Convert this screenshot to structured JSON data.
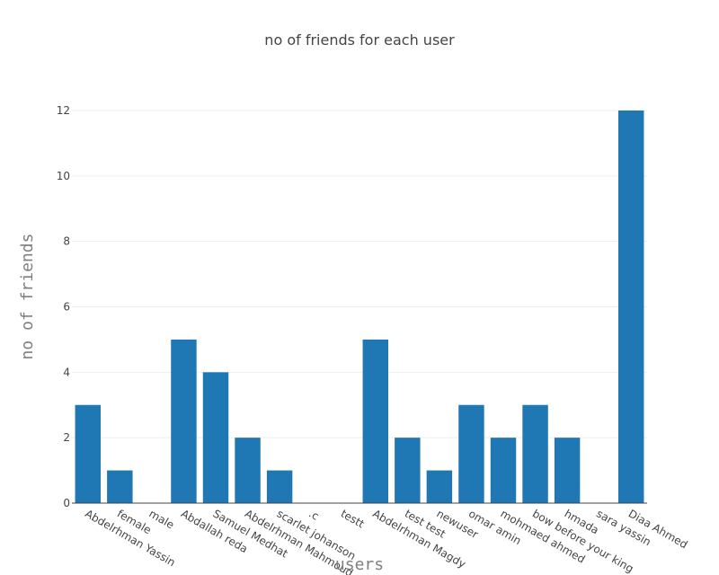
{
  "chart_data": {
    "type": "bar",
    "title": "no of friends for each user",
    "xlabel": "users",
    "ylabel": "no of friends",
    "categories": [
      "Abdelrhman Yassin",
      "female",
      "male",
      "Abdallah reda",
      "Samuel Medhat",
      "Abdelrhman Mahmoud",
      "scarlet johanson",
      ".c",
      "testt",
      "Abdelrhman Magdy",
      "test test",
      "newuser",
      "omar amin",
      "mohmaed ahmed",
      "bow before your king",
      "hmada",
      "sara yassin",
      "Diaa Ahmed"
    ],
    "values": [
      3,
      1,
      0,
      5,
      4,
      2,
      1,
      0,
      0,
      5,
      2,
      1,
      3,
      2,
      3,
      2,
      0,
      12
    ],
    "ylim": [
      0,
      12
    ],
    "yticks": [
      0,
      2,
      4,
      6,
      8,
      10,
      12
    ],
    "grid": true,
    "color": "#1f77b4"
  }
}
